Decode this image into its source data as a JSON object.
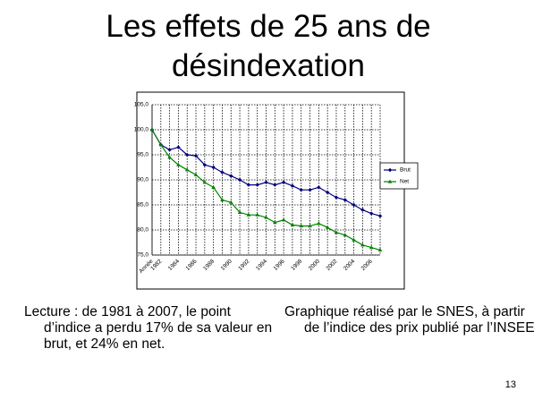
{
  "chart_data": {
    "type": "line",
    "title": "Les effets de 25 ans de désindexation",
    "categories": [
      "Année",
      "1982",
      null,
      "1984",
      null,
      "1986",
      null,
      "1988",
      null,
      "1990",
      null,
      "1992",
      null,
      "1994",
      null,
      "1996",
      null,
      "1998",
      null,
      "2000",
      null,
      "2002",
      null,
      "2004",
      null,
      "2006",
      null
    ],
    "series": [
      {
        "name": "Brut",
        "color": "#000080",
        "values": [
          100,
          97,
          96,
          96.5,
          95,
          94.8,
          93,
          92.5,
          91.5,
          90.8,
          90,
          89,
          89,
          89.5,
          89,
          89.5,
          88.8,
          88,
          88,
          88.5,
          87.5,
          86.5,
          86,
          85,
          84,
          83.3,
          82.8
        ]
      },
      {
        "name": "Net",
        "color": "#008000",
        "values": [
          100,
          97,
          94.5,
          93,
          92,
          91,
          89.5,
          88.5,
          86,
          85.5,
          83.5,
          83,
          83,
          82.5,
          81.5,
          82,
          81,
          80.8,
          80.8,
          81.3,
          80.5,
          79.5,
          79,
          78,
          77,
          76.5,
          76
        ]
      }
    ],
    "ylim": [
      75,
      105
    ],
    "yticks": [
      {
        "value": 75,
        "label": "75,0"
      },
      {
        "value": 80,
        "label": "80,0"
      },
      {
        "value": 85,
        "label": "85,0"
      },
      {
        "value": 90,
        "label": "90,0"
      },
      {
        "value": 95,
        "label": "95,0"
      },
      {
        "value": 100,
        "label": "100,0"
      },
      {
        "value": 105,
        "label": "105,0"
      }
    ],
    "grid": true,
    "legend": "right"
  },
  "captions": [
    "Lecture : de 1981 à 2007, le point d’indice a perdu 17% de sa valeur en brut, et 24% en net.",
    "Graphique réalisé par le SNES, à partir de l’indice des prix publié par l’INSEE."
  ],
  "page_number": "13"
}
